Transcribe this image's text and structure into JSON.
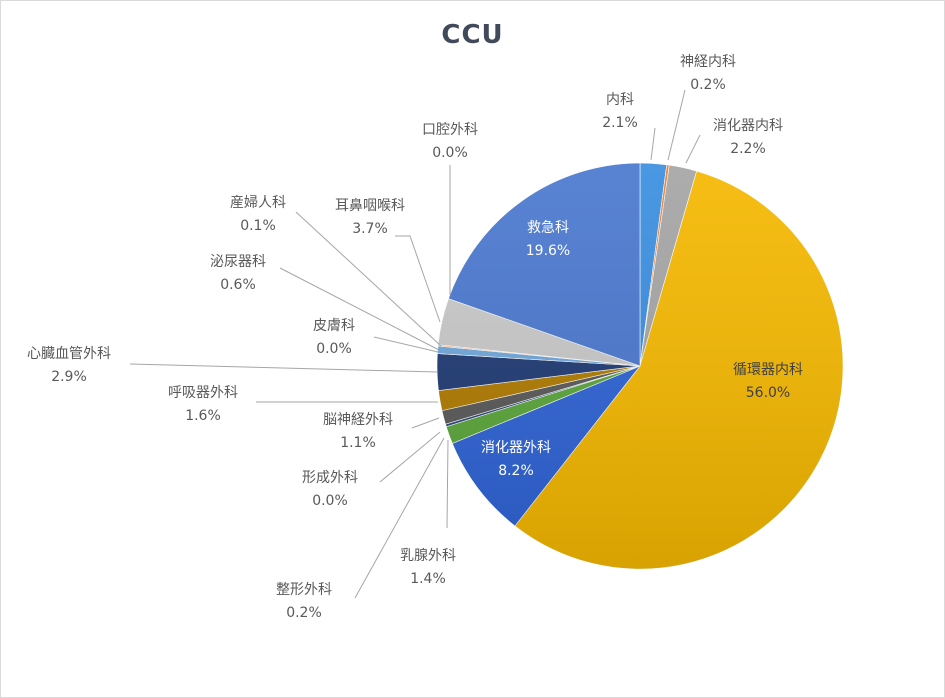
{
  "chart_data": {
    "type": "pie",
    "title": "CCU",
    "slices": [
      {
        "label": "内科",
        "percent": "2.1%",
        "value": 2.1,
        "color": "#3a8ee0",
        "label_pos": "outside"
      },
      {
        "label": "神経内科",
        "percent": "0.2%",
        "value": 0.2,
        "color": "#ed7d31",
        "label_pos": "outside"
      },
      {
        "label": "消化器内科",
        "percent": "2.2%",
        "value": 2.2,
        "color": "#a5a5a5",
        "label_pos": "outside"
      },
      {
        "label": "循環器内科",
        "percent": "56.0%",
        "value": 56.0,
        "color": "#f5b800",
        "label_pos": "inside"
      },
      {
        "label": "消化器外科",
        "percent": "8.2%",
        "value": 8.2,
        "color": "#2e64d6",
        "label_pos": "inside"
      },
      {
        "label": "乳腺外科",
        "percent": "1.4%",
        "value": 1.4,
        "color": "#5ba63a",
        "label_pos": "outside"
      },
      {
        "label": "整形外科",
        "percent": "0.2%",
        "value": 0.2,
        "color": "#264478",
        "label_pos": "outside"
      },
      {
        "label": "形成外科",
        "percent": "0.0%",
        "value": 0.0,
        "color": "#9e480e",
        "label_pos": "outside"
      },
      {
        "label": "脳神経外科",
        "percent": "1.1%",
        "value": 1.1,
        "color": "#595959",
        "label_pos": "outside"
      },
      {
        "label": "呼吸器外科",
        "percent": "1.6%",
        "value": 1.6,
        "color": "#b07c00",
        "label_pos": "outside"
      },
      {
        "label": "心臓血管外科",
        "percent": "2.9%",
        "value": 2.9,
        "color": "#1f3a73",
        "label_pos": "outside"
      },
      {
        "label": "皮膚科",
        "percent": "0.0%",
        "value": 0.0,
        "color": "#2f6a2c",
        "label_pos": "outside"
      },
      {
        "label": "泌尿器科",
        "percent": "0.6%",
        "value": 0.6,
        "color": "#6fa8dc",
        "label_pos": "outside"
      },
      {
        "label": "産婦人科",
        "percent": "0.1%",
        "value": 0.1,
        "color": "#f4a470",
        "label_pos": "outside"
      },
      {
        "label": "耳鼻咽喉科",
        "percent": "3.7%",
        "value": 3.7,
        "color": "#c9c9c9",
        "label_pos": "outside"
      },
      {
        "label": "口腔外科",
        "percent": "0.0%",
        "value": 0.0,
        "color": "#ffd966",
        "label_pos": "outside"
      },
      {
        "label": "救急科",
        "percent": "19.6%",
        "value": 19.6,
        "color": "#4a78cf",
        "label_pos": "inside"
      }
    ]
  }
}
